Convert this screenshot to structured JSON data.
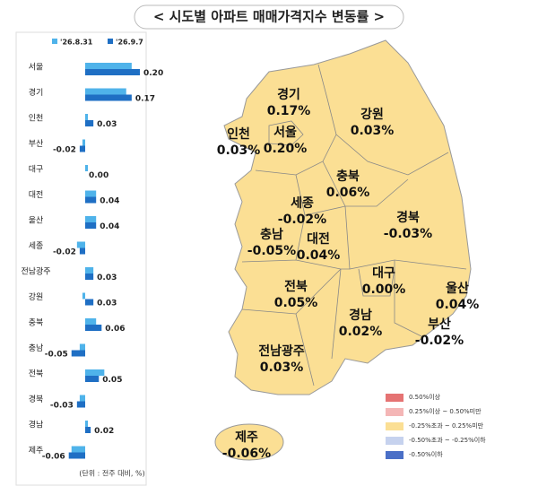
{
  "title": "< 시도별 아파트 매매가격지수 변동률 >",
  "chart_data": {
    "type": "bar",
    "orientation": "horizontal",
    "categories": [
      "서울",
      "경기",
      "인천",
      "부산",
      "대구",
      "대전",
      "울산",
      "세종",
      "전남광주",
      "강원",
      "충북",
      "충남",
      "전북",
      "경북",
      "경남",
      "제주"
    ],
    "series": [
      {
        "name": "'26.8.31",
        "color": "#4fb3ea",
        "values": [
          0.17,
          0.15,
          0.01,
          -0.01,
          0.01,
          0.04,
          0.04,
          -0.03,
          0.03,
          -0.01,
          0.04,
          -0.02,
          0.07,
          -0.02,
          0.01,
          -0.05
        ]
      },
      {
        "name": "'26.9.7",
        "color": "#1f6fc4",
        "values": [
          0.2,
          0.17,
          0.03,
          -0.02,
          0,
          0.04,
          0.04,
          -0.02,
          0.03,
          0.03,
          0.06,
          -0.05,
          0.05,
          -0.03,
          0.02,
          -0.06
        ],
        "value_labels": [
          "0.20",
          "0.17",
          "0.03",
          "-0.02",
          "0.00",
          "0.04",
          "0.04",
          "-0.02",
          "0.03",
          "0.03",
          "0.06",
          "-0.05",
          "0.05",
          "-0.03",
          "0.02",
          "-0.06"
        ]
      }
    ],
    "footnote": "(단위 : 전주 대비, %)"
  },
  "map": {
    "fill": "#fbdf94",
    "regions": [
      {
        "name": "경기",
        "value": 0.17,
        "value_label": "0.17%"
      },
      {
        "name": "강원",
        "value": 0.03,
        "value_label": "0.03%"
      },
      {
        "name": "인천",
        "value": 0.03,
        "value_label": "0.03%"
      },
      {
        "name": "서울",
        "value": 0.2,
        "value_label": "0.20%"
      },
      {
        "name": "충북",
        "value": 0.06,
        "value_label": "0.06%"
      },
      {
        "name": "세종",
        "value": -0.02,
        "value_label": "-0.02%"
      },
      {
        "name": "경북",
        "value": -0.03,
        "value_label": "-0.03%"
      },
      {
        "name": "충남",
        "value": -0.05,
        "value_label": "-0.05%"
      },
      {
        "name": "대전",
        "value": 0.04,
        "value_label": "0.04%"
      },
      {
        "name": "전북",
        "value": 0.05,
        "value_label": "0.05%"
      },
      {
        "name": "대구",
        "value": 0,
        "value_label": "0.00%"
      },
      {
        "name": "울산",
        "value": 0.04,
        "value_label": "0.04%"
      },
      {
        "name": "경남",
        "value": 0.02,
        "value_label": "0.02%"
      },
      {
        "name": "부산",
        "value": -0.02,
        "value_label": "-0.02%"
      },
      {
        "name": "전남광주",
        "value": 0.03,
        "value_label": "0.03%"
      },
      {
        "name": "제주",
        "value": -0.06,
        "value_label": "-0.06%"
      }
    ],
    "legend": [
      {
        "color": "#e57373",
        "label": "0.50%이상"
      },
      {
        "color": "#f4b6b6",
        "label": "0.25%이상 ~ 0.50%미만"
      },
      {
        "color": "#fbdf94",
        "label": "-0.25%초과 ~ 0.25%미만"
      },
      {
        "color": "#c6d2ee",
        "label": "-0.50%초과 ~ -0.25%이하"
      },
      {
        "color": "#4a6fc7",
        "label": "-0.50%이하"
      }
    ]
  }
}
